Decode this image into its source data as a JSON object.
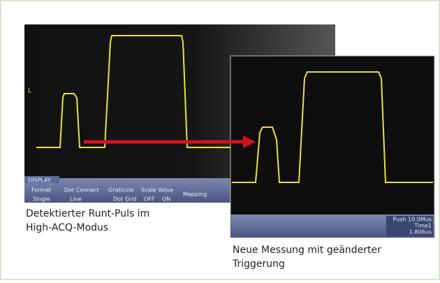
{
  "left": {
    "marker": "L",
    "menu": {
      "title": "DISPLAY",
      "items": [
        "Format",
        "Dot Connect",
        "Graticule",
        "Scale Value",
        "Mapping"
      ],
      "options": [
        "Single",
        "Line",
        "Dot Grid",
        "OFF",
        "ON"
      ]
    },
    "caption": [
      "Detektierter Runt-Puls im",
      "High-ACQ-Modus"
    ]
  },
  "right": {
    "menu": {
      "push": "Push 10.0Mus",
      "time_label": "Time1",
      "time_value": "1.806us"
    },
    "caption": [
      "Neue Messung mit geänderter",
      "Triggerung"
    ]
  }
}
